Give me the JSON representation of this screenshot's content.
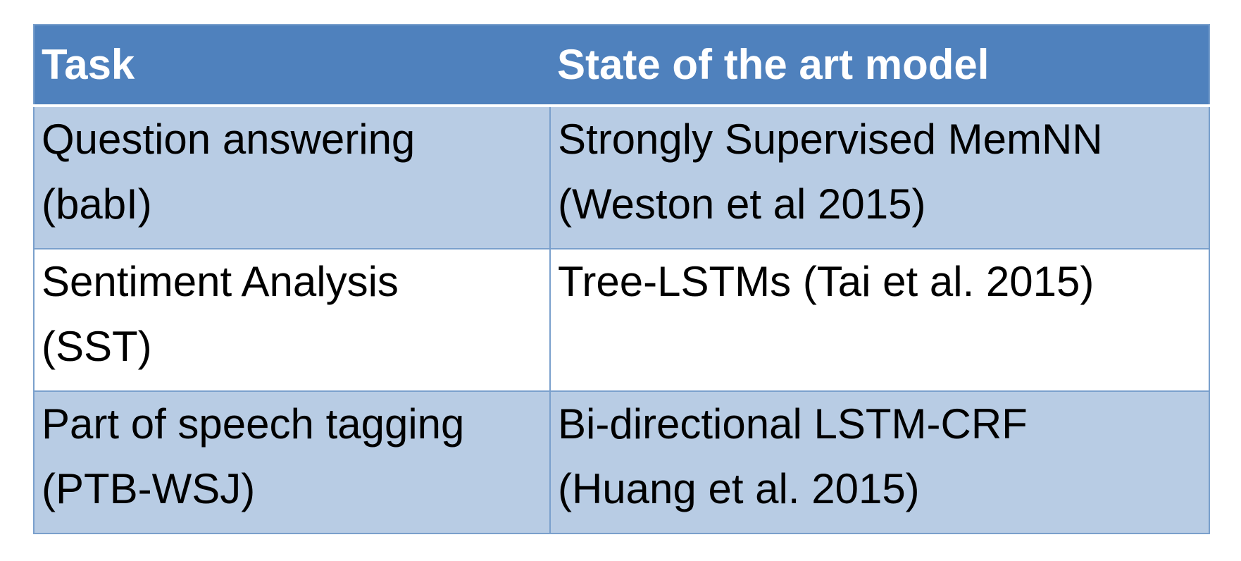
{
  "table": {
    "headers": [
      "Task",
      "State of the art model"
    ],
    "rows": [
      {
        "task": [
          "Question answering",
          "(babI)"
        ],
        "model": [
          "Strongly Supervised MemNN",
          "(Weston et al 2015)"
        ]
      },
      {
        "task": [
          "Sentiment Analysis",
          "(SST)"
        ],
        "model": [
          "Tree-LSTMs (Tai et al. 2015)"
        ]
      },
      {
        "task": [
          "Part of speech tagging",
          "(PTB-WSJ)"
        ],
        "model": [
          "Bi-directional LSTM-CRF",
          "(Huang et al. 2015)"
        ]
      }
    ],
    "colors": {
      "header_bg": "#4f81bd",
      "header_text": "#ffffff",
      "band_bg": "#b8cce4",
      "plain_bg": "#ffffff",
      "border": "#7aa0cc"
    }
  }
}
